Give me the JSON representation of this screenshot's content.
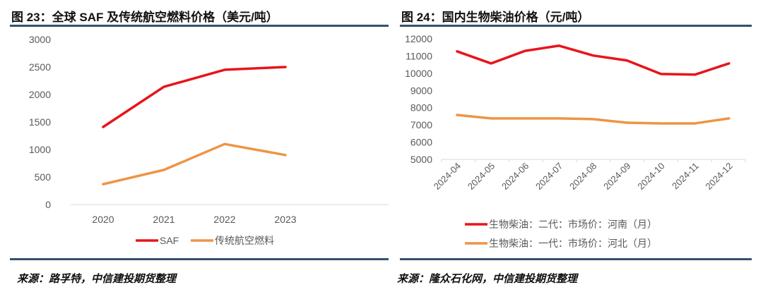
{
  "chart_data": [
    {
      "type": "line",
      "title": "图 23：全球 SAF 及传统航空燃料价格（美元/吨）",
      "categories": [
        "2020",
        "2021",
        "2022",
        "2023"
      ],
      "ylim": [
        0,
        3000
      ],
      "yticks": [
        "0",
        "500",
        "1000",
        "1500",
        "2000",
        "2500",
        "3000"
      ],
      "grid": false,
      "legend_position": "bottom",
      "series": [
        {
          "name": "SAF",
          "color": "#e8141b",
          "values": [
            1410,
            2140,
            2450,
            2500
          ]
        },
        {
          "name": "传统航空燃料",
          "color": "#ee9445",
          "values": [
            370,
            630,
            1100,
            900
          ]
        }
      ],
      "source": "来源：路孚特，中信建投期货整理"
    },
    {
      "type": "line",
      "title": "图 24：国内生物柴油价格（元/吨）",
      "categories": [
        "2024-04",
        "2024-05",
        "2024-06",
        "2024-07",
        "2024-08",
        "2024-09",
        "2024-10",
        "2024-11",
        "2024-12"
      ],
      "ylim": [
        5000,
        12000
      ],
      "yticks": [
        "5000",
        "6000",
        "7000",
        "8000",
        "9000",
        "10000",
        "11000",
        "12000"
      ],
      "grid": false,
      "legend_position": "bottom",
      "series": [
        {
          "name": "生物柴油：二代：市场价：河南（月）",
          "color": "#e8141b",
          "values": [
            11270,
            10570,
            11300,
            11600,
            11030,
            10740,
            9960,
            9920,
            10570
          ]
        },
        {
          "name": "生物柴油：一代：市场价：河北（月）",
          "color": "#ee9445",
          "values": [
            7580,
            7380,
            7380,
            7380,
            7340,
            7130,
            7090,
            7090,
            7380
          ]
        }
      ],
      "source": "来源：隆众石化网，中信建投期货整理"
    }
  ]
}
